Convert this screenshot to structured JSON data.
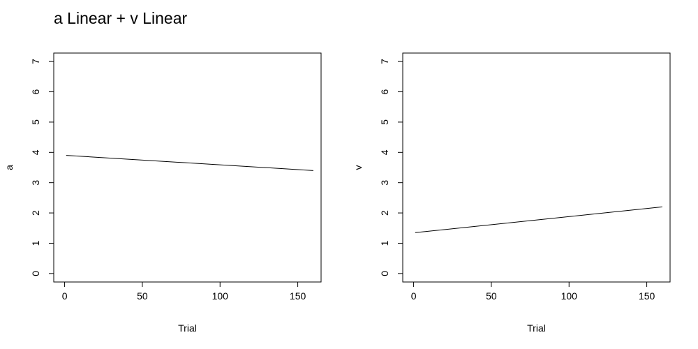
{
  "title": "a Linear + v Linear",
  "chart_data": [
    {
      "type": "line",
      "xlabel": "Trial",
      "ylabel": "a",
      "xlim": [
        -7,
        165
      ],
      "ylim": [
        -0.28,
        7.28
      ],
      "xticks": [
        0,
        50,
        100,
        150
      ],
      "yticks": [
        0,
        1,
        2,
        3,
        4,
        5,
        6,
        7
      ],
      "grid": false,
      "series": [
        {
          "x": [
            1,
            160
          ],
          "y": [
            3.9,
            3.4
          ]
        }
      ]
    },
    {
      "type": "line",
      "xlabel": "Trial",
      "ylabel": "v",
      "xlim": [
        -7,
        165
      ],
      "ylim": [
        -0.28,
        7.28
      ],
      "xticks": [
        0,
        50,
        100,
        150
      ],
      "yticks": [
        0,
        1,
        2,
        3,
        4,
        5,
        6,
        7
      ],
      "grid": false,
      "series": [
        {
          "x": [
            1,
            160
          ],
          "y": [
            1.35,
            2.2
          ]
        }
      ]
    }
  ]
}
